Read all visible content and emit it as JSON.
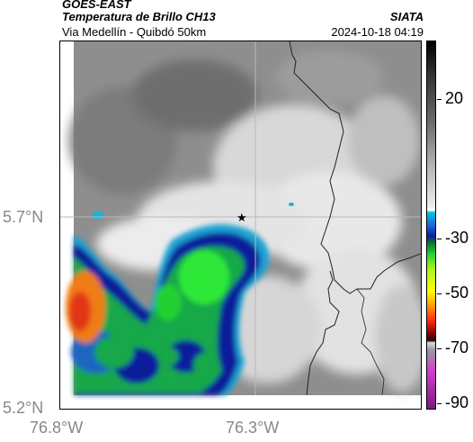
{
  "header": {
    "satellite": "GOES-EAST",
    "product": "Temperatura de Brillo CH13",
    "route": "Via Medellín - Quibdó 50km",
    "agency": "SIATA",
    "datetime": "2024-10-18 04:19"
  },
  "map": {
    "lat_labels": [
      "5.7°N",
      "5.2°N"
    ],
    "lon_labels": [
      "76.8°W",
      "76.3°W"
    ],
    "marker": "star-icon",
    "colors": {
      "background": "#8a8a8a",
      "light_cloud": "#e6e6e6",
      "cold_blue": "#0a1f9a",
      "mid_cyan": "#1ea0d2",
      "green": "#16b33e",
      "bright_green": "#22f02a",
      "red": "#e23412",
      "orange": "#f07c18",
      "gridline": "#b8b8b8",
      "border": "#222222"
    }
  },
  "colorbar": {
    "labels": [
      "20",
      "-30",
      "-50",
      "-70",
      "-90"
    ]
  }
}
